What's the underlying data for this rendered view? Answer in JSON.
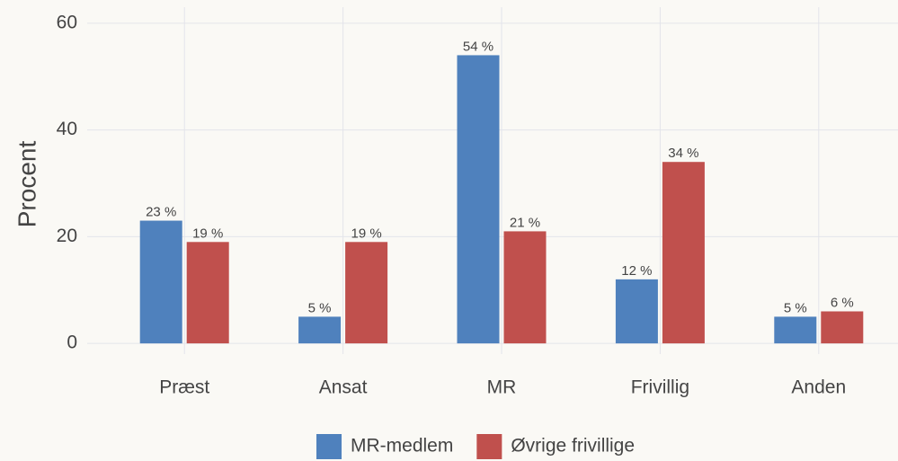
{
  "chart_data": {
    "type": "bar",
    "y_label": "Procent",
    "categories": [
      "Præst",
      "Ansat",
      "MR",
      "Frivillig",
      "Anden"
    ],
    "series": [
      {
        "name": "MR-medlem",
        "color": "#4f81bd",
        "values": [
          23,
          5,
          54,
          12,
          5
        ],
        "value_labels": [
          "23 %",
          "5 %",
          "54 %",
          "12 %",
          "5 %"
        ]
      },
      {
        "name": "Øvrige frivillige",
        "color": "#c0504d",
        "values": [
          19,
          19,
          21,
          34,
          6
        ],
        "value_labels": [
          "19 %",
          "19 %",
          "21 %",
          "34 %",
          "6 %"
        ]
      }
    ],
    "ylim": [
      -2,
      63
    ],
    "yticks": [
      0,
      20,
      40,
      60
    ],
    "grid": true,
    "legend": "bottom"
  }
}
